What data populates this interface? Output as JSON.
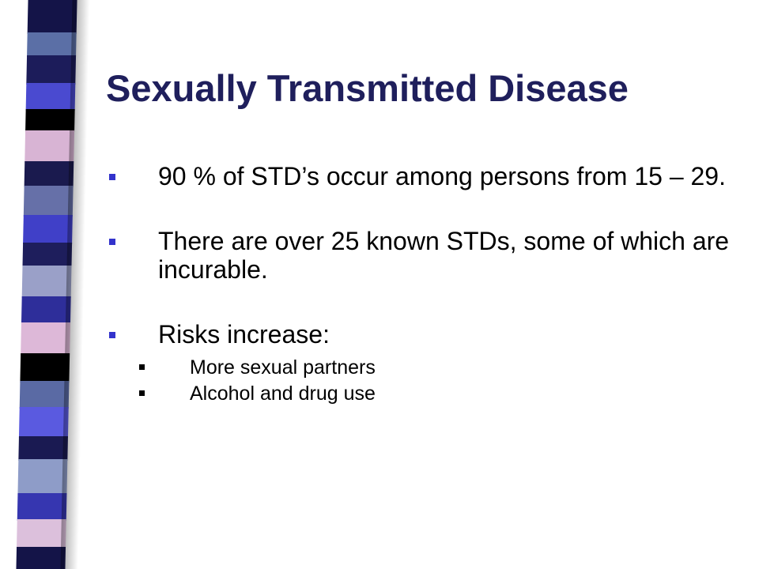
{
  "slide": {
    "title": "Sexually Transmitted Disease",
    "bullets": [
      {
        "text": "90 % of STD’s occur among persons from 15 – 29."
      },
      {
        "text": "There are over 25 known STDs, some of which are incurable."
      },
      {
        "text": "Risks increase:"
      }
    ],
    "sub_bullets": [
      {
        "text": "More sexual partners"
      },
      {
        "text": "Alcohol and drug use"
      }
    ]
  },
  "colors": {
    "title": "#1f1f5c",
    "bullet_marker": "#3333cc",
    "sub_bullet_marker": "#000000",
    "stripe": [
      "#141448",
      "#5b6fa6",
      "#1c1c5a",
      "#4a4ad0",
      "#000000",
      "#d8b4d4",
      "#1a1a4e",
      "#6670a8",
      "#4040c8",
      "#1e1e5c",
      "#9aa0c8",
      "#2e2e9a",
      "#ddb8d8",
      "#000000",
      "#5a6aa4",
      "#5a5ae0",
      "#1a1a52",
      "#8e9cc8",
      "#3636b0",
      "#dcc0dc",
      "#141448"
    ]
  },
  "icons": {
    "bullet_marker": "square-bullet-icon",
    "sub_bullet_marker": "square-bullet-icon"
  }
}
